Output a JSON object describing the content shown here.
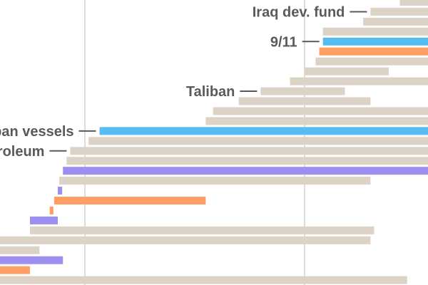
{
  "chart_data": {
    "type": "bar",
    "subtype": "floating-range",
    "title": "",
    "xlabel": "",
    "ylabel": "",
    "grid": true,
    "legend": "none",
    "gridlines": [
      1970,
      2000
    ],
    "xlim": [
      1960,
      2018
    ],
    "colors": {
      "default": "#dcd3c6",
      "blue": "#57bdf0",
      "orange": "#ff9f66",
      "purple": "#9d8ff0",
      "gridline": "#d0d0d0",
      "label": "#5a5a5a"
    },
    "bars": [
      {
        "start": 2013,
        "end": 2018,
        "color": "default"
      },
      {
        "start": 2009,
        "end": 2018,
        "color": "default"
      },
      {
        "start": 2008,
        "end": 2018,
        "color": "default"
      },
      {
        "start": 2002.5,
        "end": 2018,
        "color": "default"
      },
      {
        "start": 2002.5,
        "end": 2018,
        "color": "blue"
      },
      {
        "start": 2002,
        "end": 2018,
        "color": "orange"
      },
      {
        "start": 2001.5,
        "end": 2018,
        "color": "default"
      },
      {
        "start": 2000,
        "end": 2011.5,
        "color": "default"
      },
      {
        "start": 1998,
        "end": 2018,
        "color": "default"
      },
      {
        "start": 1994,
        "end": 2005.5,
        "color": "default"
      },
      {
        "start": 1991,
        "end": 2009,
        "color": "default"
      },
      {
        "start": 1987.5,
        "end": 2018,
        "color": "default"
      },
      {
        "start": 1986.5,
        "end": 2018,
        "color": "default"
      },
      {
        "start": 1972,
        "end": 2018,
        "color": "blue"
      },
      {
        "start": 1970.5,
        "end": 2018,
        "color": "default"
      },
      {
        "start": 1968,
        "end": 2018,
        "color": "default"
      },
      {
        "start": 1967.5,
        "end": 2018,
        "color": "default"
      },
      {
        "start": 1967,
        "end": 2018,
        "color": "purple"
      },
      {
        "start": 1966.5,
        "end": 2009,
        "color": "default"
      },
      {
        "start": 1966.3,
        "end": 1966.9,
        "color": "purple"
      },
      {
        "start": 1965.8,
        "end": 1986.5,
        "color": "orange"
      },
      {
        "start": 1965.2,
        "end": 1965.7,
        "color": "orange"
      },
      {
        "start": 1962.5,
        "end": 1966.3,
        "color": "purple"
      },
      {
        "start": 1962.5,
        "end": 2009.5,
        "color": "default"
      },
      {
        "start": 1957.5,
        "end": 2009,
        "color": "default"
      },
      {
        "start": 1954.8,
        "end": 1963.8,
        "color": "default"
      },
      {
        "start": 1951,
        "end": 1967,
        "color": "purple"
      },
      {
        "start": 1950.5,
        "end": 1962.5,
        "color": "orange"
      },
      {
        "start": 1950,
        "end": 2014,
        "color": "default"
      }
    ],
    "annotations": [
      {
        "text": "Iraq dev. fund",
        "bar": 1
      },
      {
        "text": "9/11",
        "bar": 4
      },
      {
        "text": "Taliban",
        "bar": 9
      },
      {
        "text": "Stop Cuban vessels",
        "bar": 13
      },
      {
        "text": "Iran petroleum",
        "bar": 15
      }
    ]
  }
}
